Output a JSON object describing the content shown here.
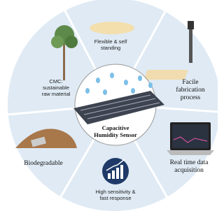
{
  "center": {
    "lines": [
      "Capacitive",
      "Humidity Sensor"
    ]
  },
  "segments": [
    {
      "lines": [
        "Flexible & self",
        "standing"
      ]
    },
    {
      "lines": [
        "Facile",
        "fabrication",
        "process"
      ]
    },
    {
      "lines": [
        "Real time data",
        "acquisition"
      ]
    },
    {
      "lines": [
        "High sensitivity &",
        "fast response"
      ]
    },
    {
      "lines": [
        "Biodegradable"
      ]
    },
    {
      "lines": [
        "CMC:",
        "sustainable",
        "raw material"
      ]
    }
  ]
}
